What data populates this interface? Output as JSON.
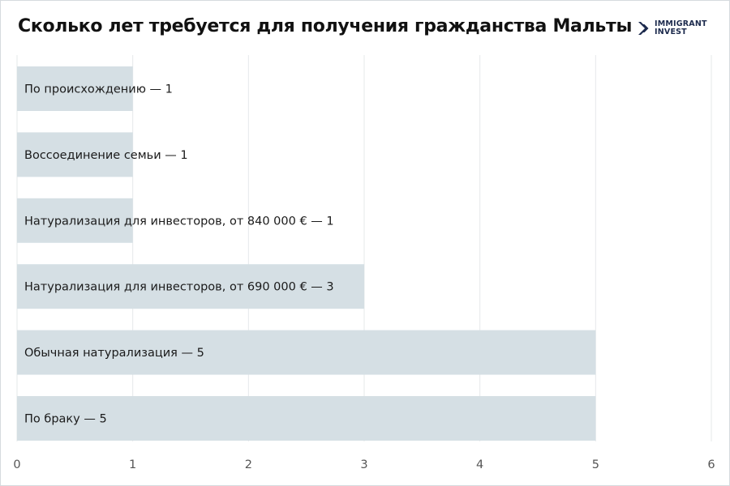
{
  "title": "Сколько лет требуется для получения гражданства Мальты",
  "logo": {
    "line1": "IMMIGRANT",
    "line2": "INVEST"
  },
  "chart_data": {
    "type": "bar",
    "orientation": "horizontal",
    "categories": [
      "По происхождению — 1",
      "Воссоединение семьи — 1",
      "Натурализация для инвесторов, от 840 000 € — 1",
      "Натурализация для инвесторов, от 690 000 € — 3",
      "Обычная натурализация — 5",
      "По браку — 5"
    ],
    "values": [
      1,
      1,
      1,
      3,
      5,
      5
    ],
    "xlim": [
      0,
      6
    ],
    "xticks": [
      "0",
      "1",
      "2",
      "3",
      "4",
      "5",
      "6"
    ],
    "grid": true,
    "colors": {
      "bar": "#d5dfe4",
      "grid": "#e6e8ea",
      "text": "#1a1a1a",
      "tick": "#555555"
    }
  }
}
